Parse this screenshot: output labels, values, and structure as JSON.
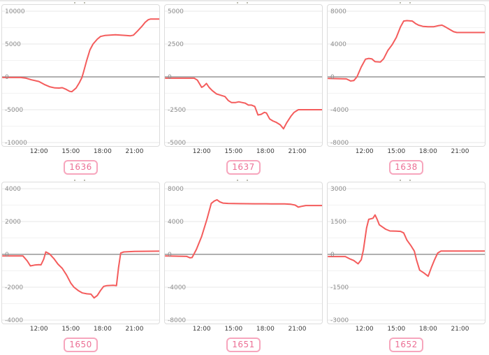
{
  "page": {
    "background": "#ffffff",
    "description_colors": {
      "line_color": "#f45c5c",
      "zero_line_color": "#969696",
      "grid_major_color": "#e7e7e7",
      "grid_minor_color": "#f2f2f2",
      "card_border_color": "#dcdcdc",
      "y_label_color": "#8c8c8c",
      "x_label_color": "#3a3a3a",
      "badge_border_color": "#f7a6bd",
      "badge_text_color": "#ec6f95"
    }
  },
  "x_axis": {
    "ticks": [
      "12:00",
      "15:00",
      "18:00",
      "21:00"
    ],
    "tick_hours": [
      12,
      15,
      18,
      21
    ],
    "domain_hours": [
      8.6,
      23.4
    ]
  },
  "chart_data": [
    {
      "type": "line",
      "badge": "1636",
      "ylim": [
        -10000,
        10000
      ],
      "y_tick_labels": [
        "10000",
        "5000",
        "0",
        "-5000",
        "-10000"
      ],
      "x_tick_labels": [
        "12:00",
        "15:00",
        "18:00",
        "21:00"
      ],
      "grid": "horizontal",
      "legend": "none",
      "series": [
        {
          "name": "series-1636",
          "points": [
            [
              8.6,
              -100
            ],
            [
              10.3,
              -100
            ],
            [
              10.8,
              -200
            ],
            [
              11.3,
              -450
            ],
            [
              12,
              -700
            ],
            [
              12.5,
              -1150
            ],
            [
              13,
              -1500
            ],
            [
              13.5,
              -1680
            ],
            [
              13.9,
              -1700
            ],
            [
              14.2,
              -1650
            ],
            [
              14.5,
              -1850
            ],
            [
              14.9,
              -2200
            ],
            [
              15.1,
              -2250
            ],
            [
              15.5,
              -1700
            ],
            [
              15.8,
              -900
            ],
            [
              16.05,
              -100
            ],
            [
              16.2,
              700
            ],
            [
              16.5,
              2500
            ],
            [
              16.8,
              4100
            ],
            [
              17.1,
              5000
            ],
            [
              17.5,
              5750
            ],
            [
              17.8,
              6150
            ],
            [
              18.2,
              6300
            ],
            [
              18.7,
              6350
            ],
            [
              19.2,
              6400
            ],
            [
              19.7,
              6350
            ],
            [
              20.2,
              6300
            ],
            [
              20.6,
              6250
            ],
            [
              20.9,
              6350
            ],
            [
              21.3,
              7000
            ],
            [
              21.7,
              7700
            ],
            [
              22,
              8300
            ],
            [
              22.3,
              8700
            ],
            [
              22.5,
              8800
            ],
            [
              23.4,
              8800
            ]
          ]
        }
      ]
    },
    {
      "type": "line",
      "badge": "1637",
      "ylim": [
        -5000,
        5000
      ],
      "y_tick_labels": [
        "5000",
        "2500",
        "0",
        "-2500",
        "-5000"
      ],
      "x_tick_labels": [
        "12:00",
        "15:00",
        "18:00",
        "21:00"
      ],
      "grid": "horizontal",
      "legend": "none",
      "series": [
        {
          "name": "series-1637",
          "points": [
            [
              8.6,
              -100
            ],
            [
              11.3,
              -100
            ],
            [
              11.6,
              -250
            ],
            [
              12,
              -800
            ],
            [
              12.2,
              -700
            ],
            [
              12.45,
              -500
            ],
            [
              12.7,
              -800
            ],
            [
              13,
              -1050
            ],
            [
              13.4,
              -1300
            ],
            [
              13.8,
              -1400
            ],
            [
              14.2,
              -1500
            ],
            [
              14.5,
              -1800
            ],
            [
              14.8,
              -1950
            ],
            [
              15.2,
              -1950
            ],
            [
              15.5,
              -1900
            ],
            [
              15.8,
              -1950
            ],
            [
              16.1,
              -2000
            ],
            [
              16.4,
              -2150
            ],
            [
              16.7,
              -2150
            ],
            [
              17,
              -2250
            ],
            [
              17.3,
              -2900
            ],
            [
              17.6,
              -2850
            ],
            [
              17.9,
              -2700
            ],
            [
              18.1,
              -2750
            ],
            [
              18.4,
              -3200
            ],
            [
              18.7,
              -3350
            ],
            [
              19,
              -3450
            ],
            [
              19.4,
              -3650
            ],
            [
              19.7,
              -3950
            ],
            [
              20,
              -3500
            ],
            [
              20.4,
              -3000
            ],
            [
              20.7,
              -2700
            ],
            [
              21.1,
              -2500
            ],
            [
              23.4,
              -2500
            ]
          ]
        }
      ]
    },
    {
      "type": "line",
      "badge": "1638",
      "ylim": [
        -8000,
        8000
      ],
      "y_tick_labels": [
        "8000",
        "4000",
        "0",
        "-4000",
        "-8000"
      ],
      "x_tick_labels": [
        "12:00",
        "15:00",
        "18:00",
        "21:00"
      ],
      "grid": "horizontal",
      "legend": "none",
      "series": [
        {
          "name": "series-1638",
          "points": [
            [
              8.6,
              -200
            ],
            [
              10.3,
              -250
            ],
            [
              10.7,
              -500
            ],
            [
              11,
              -450
            ],
            [
              11.3,
              0
            ],
            [
              11.7,
              1200
            ],
            [
              12.1,
              2150
            ],
            [
              12.4,
              2250
            ],
            [
              12.7,
              2200
            ],
            [
              13,
              1850
            ],
            [
              13.5,
              1800
            ],
            [
              13.8,
              2200
            ],
            [
              14.2,
              3200
            ],
            [
              14.6,
              3900
            ],
            [
              15,
              4800
            ],
            [
              15.4,
              6100
            ],
            [
              15.7,
              6800
            ],
            [
              16,
              6850
            ],
            [
              16.5,
              6800
            ],
            [
              16.8,
              6500
            ],
            [
              17.1,
              6300
            ],
            [
              17.5,
              6150
            ],
            [
              18,
              6100
            ],
            [
              18.5,
              6100
            ],
            [
              19,
              6250
            ],
            [
              19.3,
              6300
            ],
            [
              19.6,
              6100
            ],
            [
              20,
              5800
            ],
            [
              20.4,
              5500
            ],
            [
              20.7,
              5400
            ],
            [
              23.4,
              5400
            ]
          ]
        }
      ]
    },
    {
      "type": "line",
      "badge": "1650",
      "ylim": [
        -4000,
        4000
      ],
      "y_tick_labels": [
        "4000",
        "2000",
        "0",
        "-2000",
        "-4000"
      ],
      "x_tick_labels": [
        "12:00",
        "15:00",
        "18:00",
        "21:00"
      ],
      "grid": "horizontal",
      "legend": "none",
      "series": [
        {
          "name": "series-1650",
          "points": [
            [
              8.6,
              -100
            ],
            [
              10.5,
              -100
            ],
            [
              10.9,
              -400
            ],
            [
              11.2,
              -700
            ],
            [
              11.6,
              -650
            ],
            [
              12,
              -630
            ],
            [
              12.2,
              -640
            ],
            [
              12.45,
              -300
            ],
            [
              12.65,
              150
            ],
            [
              13,
              30
            ],
            [
              13.4,
              -250
            ],
            [
              13.8,
              -600
            ],
            [
              14.2,
              -850
            ],
            [
              14.6,
              -1250
            ],
            [
              15,
              -1750
            ],
            [
              15.3,
              -2000
            ],
            [
              15.7,
              -2200
            ],
            [
              16.1,
              -2350
            ],
            [
              16.5,
              -2400
            ],
            [
              16.9,
              -2420
            ],
            [
              17.2,
              -2650
            ],
            [
              17.5,
              -2500
            ],
            [
              17.8,
              -2200
            ],
            [
              18.1,
              -1950
            ],
            [
              18.4,
              -1900
            ],
            [
              19,
              -1880
            ],
            [
              19.3,
              -1900
            ],
            [
              19.5,
              -800
            ],
            [
              19.7,
              80
            ],
            [
              20,
              150
            ],
            [
              21,
              180
            ],
            [
              23.4,
              200
            ]
          ]
        }
      ]
    },
    {
      "type": "line",
      "badge": "1651",
      "ylim": [
        -8000,
        8000
      ],
      "y_tick_labels": [
        "8000",
        "4000",
        "0",
        "-4000",
        "-8000"
      ],
      "x_tick_labels": [
        "12:00",
        "15:00",
        "18:00",
        "21:00"
      ],
      "grid": "horizontal",
      "legend": "none",
      "series": [
        {
          "name": "series-1651",
          "points": [
            [
              8.6,
              -200
            ],
            [
              10.6,
              -250
            ],
            [
              10.9,
              -420
            ],
            [
              11.1,
              -380
            ],
            [
              11.5,
              600
            ],
            [
              12,
              2200
            ],
            [
              12.5,
              4300
            ],
            [
              12.9,
              6200
            ],
            [
              13.2,
              6500
            ],
            [
              13.45,
              6650
            ],
            [
              13.7,
              6400
            ],
            [
              14,
              6250
            ],
            [
              14.5,
              6200
            ],
            [
              15.5,
              6180
            ],
            [
              17,
              6160
            ],
            [
              18.5,
              6150
            ],
            [
              19.8,
              6150
            ],
            [
              20.4,
              6100
            ],
            [
              20.8,
              6000
            ],
            [
              21.1,
              5750
            ],
            [
              21.4,
              5850
            ],
            [
              21.8,
              5950
            ],
            [
              23.4,
              5950
            ]
          ]
        }
      ]
    },
    {
      "type": "line",
      "badge": "1652",
      "ylim": [
        -3000,
        3000
      ],
      "y_tick_labels": [
        "3000",
        "1500",
        "0",
        "-1500",
        "-3000"
      ],
      "x_tick_labels": [
        "12:00",
        "15:00",
        "18:00",
        "21:00"
      ],
      "grid": "horizontal",
      "legend": "none",
      "series": [
        {
          "name": "series-1652",
          "points": [
            [
              8.6,
              -100
            ],
            [
              10.2,
              -100
            ],
            [
              10.6,
              -200
            ],
            [
              11,
              -280
            ],
            [
              11.4,
              -430
            ],
            [
              11.7,
              -250
            ],
            [
              11.9,
              200
            ],
            [
              12.2,
              1200
            ],
            [
              12.4,
              1600
            ],
            [
              12.8,
              1650
            ],
            [
              13,
              1800
            ],
            [
              13.2,
              1600
            ],
            [
              13.4,
              1350
            ],
            [
              13.7,
              1250
            ],
            [
              14,
              1150
            ],
            [
              14.4,
              1070
            ],
            [
              15,
              1060
            ],
            [
              15.4,
              1050
            ],
            [
              15.7,
              980
            ],
            [
              16,
              650
            ],
            [
              16.4,
              380
            ],
            [
              16.7,
              150
            ],
            [
              16.9,
              -250
            ],
            [
              17.2,
              -720
            ],
            [
              17.6,
              -850
            ],
            [
              18,
              -1000
            ],
            [
              18.3,
              -600
            ],
            [
              18.6,
              -250
            ],
            [
              18.9,
              60
            ],
            [
              19.2,
              150
            ],
            [
              23.4,
              150
            ]
          ]
        }
      ]
    }
  ]
}
